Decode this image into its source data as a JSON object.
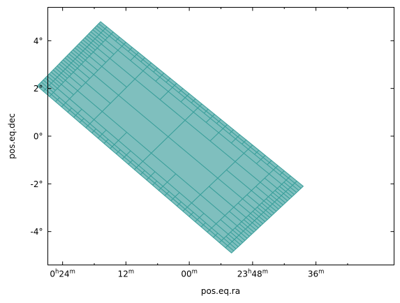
{
  "chart_data": {
    "type": "moc-sky-coverage",
    "xlabel": "pos.eq.ra",
    "ylabel": "pos.eq.dec",
    "xlim": [
      6.7,
      -9.7
    ],
    "ylim": [
      -5.4,
      5.4
    ],
    "x_ticks": [
      {
        "value": 6,
        "label": "0h24m",
        "major": "0",
        "h": "h",
        "minor": "24",
        "m": "m"
      },
      {
        "value": 3,
        "label": "12m",
        "major": "12",
        "h": "",
        "minor": "",
        "m": "m"
      },
      {
        "value": 0,
        "label": "00m",
        "major": "00",
        "h": "",
        "minor": "",
        "m": "m"
      },
      {
        "value": -3,
        "label": "23h48m",
        "major": "23",
        "h": "h",
        "minor": "48",
        "m": "m"
      },
      {
        "value": -6,
        "label": "36m",
        "major": "36",
        "h": "",
        "minor": "",
        "m": "m"
      }
    ],
    "x_minor_ticks": [
      4.5,
      1.5,
      -1.5,
      -4.5,
      -7.5
    ],
    "y_ticks": [
      {
        "value": 4,
        "label": "4°"
      },
      {
        "value": 2,
        "label": "2°"
      },
      {
        "value": 0,
        "label": "0°"
      },
      {
        "value": -2,
        "label": "-2°"
      },
      {
        "value": -4,
        "label": "-4°"
      }
    ],
    "region": {
      "description_units": "RA offset in degrees from 0h00m (east positive), Dec in degrees",
      "corners": [
        [
          4.2,
          4.8
        ],
        [
          7.2,
          2.1
        ],
        [
          -2.0,
          -4.9
        ],
        [
          -5.4,
          -2.1
        ]
      ],
      "fill_color": "#7fbfbe",
      "edge_color": "#3a9f9b"
    },
    "grid": false
  }
}
